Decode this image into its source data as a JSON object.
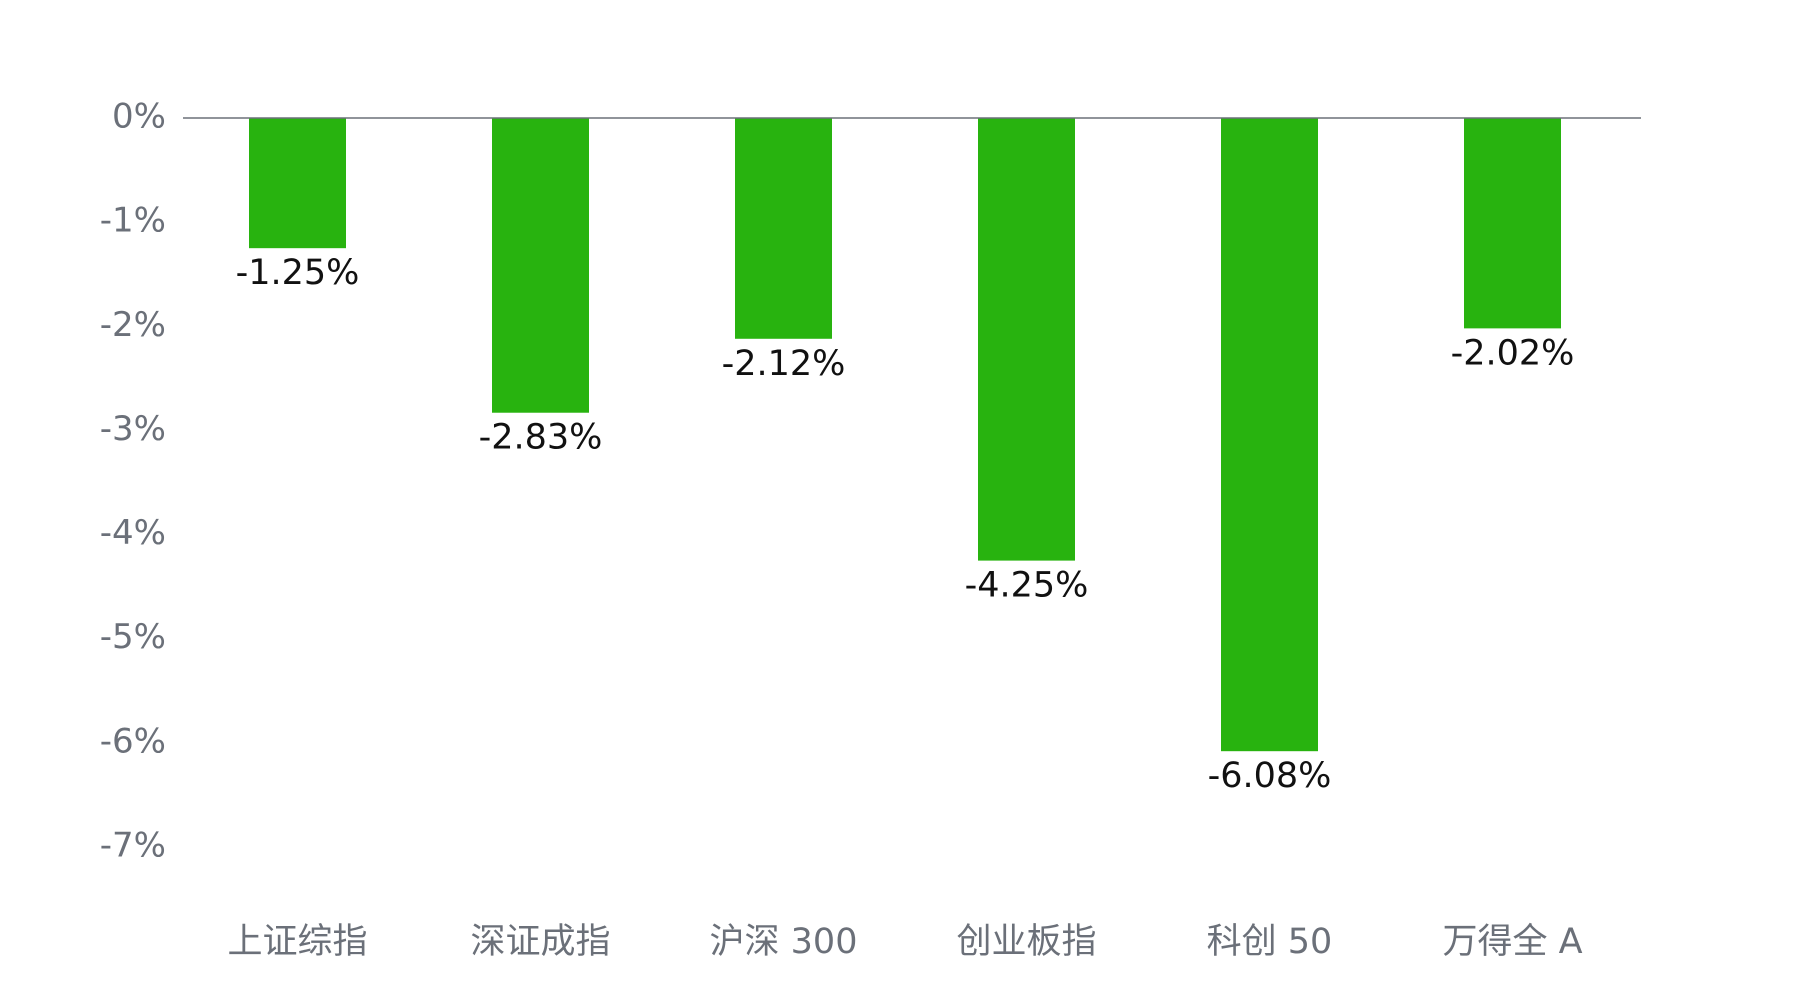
{
  "chart_data": {
    "type": "bar",
    "categories": [
      "上证综指",
      "深证成指",
      "沪深 300",
      "创业板指",
      "科创 50",
      "万得全 A"
    ],
    "values": [
      -1.25,
      -2.83,
      -2.12,
      -4.25,
      -6.08,
      -2.02
    ],
    "value_labels": [
      "-1.25%",
      "-2.83%",
      "-2.12%",
      "-4.25%",
      "-6.08%",
      "-2.02%"
    ],
    "color": "#28b30f",
    "ylim": [
      -7,
      0
    ],
    "yticks": [
      {
        "value": 0,
        "label": "0%"
      },
      {
        "value": -1,
        "label": "-1%"
      },
      {
        "value": -2,
        "label": "-2%"
      },
      {
        "value": -3,
        "label": "-3%"
      },
      {
        "value": -4,
        "label": "-4%"
      },
      {
        "value": -5,
        "label": "-5%"
      },
      {
        "value": -6,
        "label": "-6%"
      },
      {
        "value": -7,
        "label": "-7%"
      }
    ],
    "grid": false
  }
}
